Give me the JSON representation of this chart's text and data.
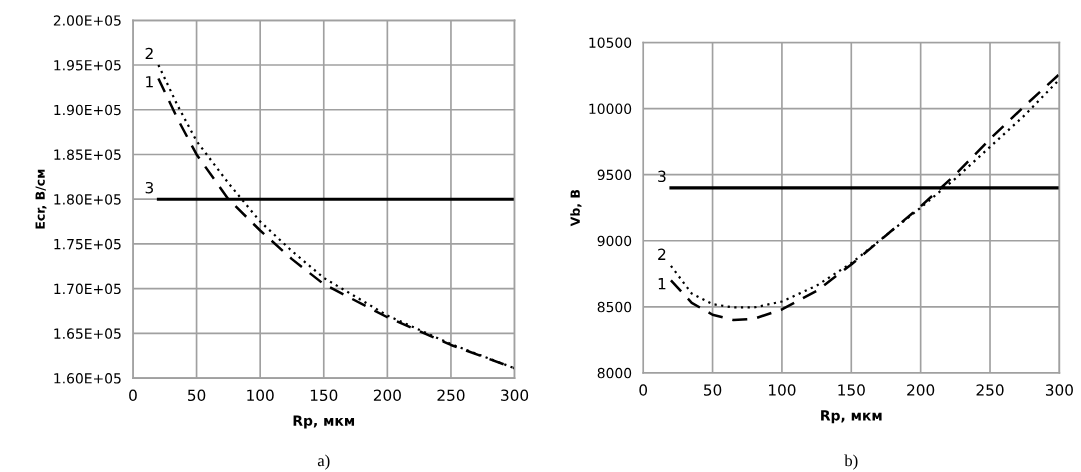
{
  "chart_data": [
    {
      "type": "line",
      "xlabel": "Rp, мкм",
      "ylabel": "Ecr, В/см",
      "annotations": [
        "a)"
      ],
      "xlim": [
        0,
        300
      ],
      "xticks": [
        0,
        50,
        100,
        150,
        200,
        250,
        300
      ],
      "ylim": [
        160000,
        200000
      ],
      "yticks": [
        {
          "value": 160000,
          "label": "1.60E+05"
        },
        {
          "value": 165000,
          "label": "1.65E+05"
        },
        {
          "value": 170000,
          "label": "1.70E+05"
        },
        {
          "value": 175000,
          "label": "1.75E+05"
        },
        {
          "value": 180000,
          "label": "1.80E+05"
        },
        {
          "value": 185000,
          "label": "1.85E+05"
        },
        {
          "value": 190000,
          "label": "1.90E+05"
        },
        {
          "value": 195000,
          "label": "1.95E+05"
        },
        {
          "value": 200000,
          "label": "2.00E+05"
        }
      ],
      "grid": true,
      "x": [
        20,
        35,
        50,
        75,
        100,
        125,
        150,
        200,
        250,
        300
      ],
      "series": [
        {
          "name": "1",
          "color": "#000000",
          "line_style": "dashed",
          "values": [
            193500,
            189000,
            185000,
            180000,
            176500,
            173300,
            170500,
            166800,
            163700,
            161100
          ]
        },
        {
          "name": "2",
          "color": "#000000",
          "line_style": "dotted",
          "values": [
            195000,
            190500,
            186500,
            181800,
            177500,
            174200,
            171200,
            167000,
            163800,
            161100
          ]
        },
        {
          "name": "3",
          "color": "#000000",
          "line_style": "solid",
          "values": [
            180000,
            180000,
            180000,
            180000,
            180000,
            180000,
            180000,
            180000,
            180000,
            180000
          ]
        }
      ]
    },
    {
      "type": "line",
      "xlabel": "Rp, мкм",
      "ylabel": "Vb, В",
      "annotations": [
        "b)"
      ],
      "xlim": [
        0,
        300
      ],
      "xticks": [
        0,
        50,
        100,
        150,
        200,
        250,
        300
      ],
      "ylim": [
        8000,
        10500
      ],
      "yticks": [
        8000,
        8500,
        9000,
        9500,
        10000,
        10500
      ],
      "grid": true,
      "x": [
        20,
        35,
        50,
        65,
        80,
        100,
        125,
        150,
        175,
        200,
        225,
        250,
        275,
        300
      ],
      "series": [
        {
          "name": "1",
          "color": "#000000",
          "line_style": "dashed",
          "values": [
            8700,
            8530,
            8440,
            8400,
            8410,
            8480,
            8620,
            8820,
            9040,
            9260,
            9500,
            9770,
            10020,
            10260
          ]
        },
        {
          "name": "2",
          "color": "#000000",
          "line_style": "dotted",
          "values": [
            8810,
            8600,
            8520,
            8495,
            8495,
            8540,
            8660,
            8830,
            9040,
            9250,
            9470,
            9710,
            9950,
            10220
          ]
        },
        {
          "name": "3",
          "color": "#000000",
          "line_style": "solid",
          "values": [
            9400,
            9400,
            9400,
            9400,
            9400,
            9400,
            9400,
            9400,
            9400,
            9400,
            9400,
            9400,
            9400,
            9400
          ]
        }
      ]
    }
  ]
}
